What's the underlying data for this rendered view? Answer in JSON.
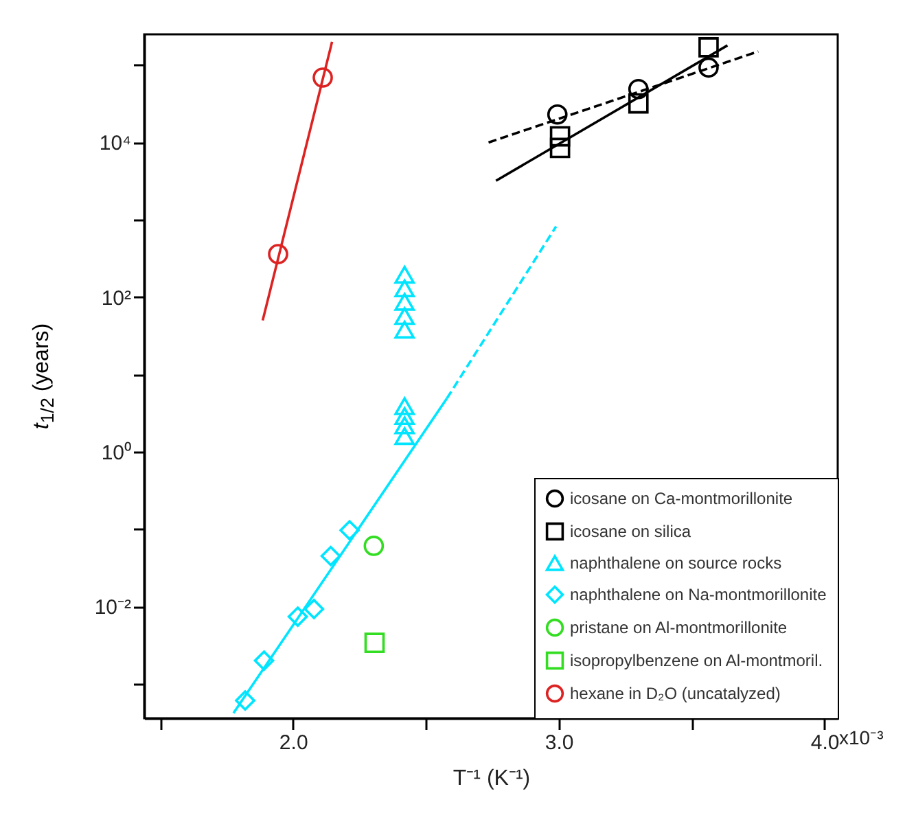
{
  "chart_data": {
    "type": "scatter",
    "xlabel": "T⁻¹ (K⁻¹)",
    "ylabel": "t$_{1/2}$ (years)",
    "log": "y",
    "grid": false,
    "legend": "bottom right",
    "annotations": [
      "x10⁻³"
    ],
    "xlim": [
      1.44,
      4.05
    ],
    "xticks": [
      {
        "value": 1.5,
        "label": null
      },
      {
        "value": 2,
        "label": "2.0"
      },
      {
        "value": 2.5,
        "label": null
      },
      {
        "value": 3,
        "label": "3.0"
      },
      {
        "value": 3.5,
        "label": null
      },
      {
        "value": 4,
        "label": "4.0"
      }
    ],
    "ylim": [
      0.00036,
      250000
    ],
    "yticks": [
      {
        "value": 0.001,
        "label": null
      },
      {
        "value": 0.01,
        "label": "10⁻²"
      },
      {
        "value": 0.1,
        "label": null
      },
      {
        "value": 1,
        "label": "10⁰"
      },
      {
        "value": 10,
        "label": null
      },
      {
        "value": 100,
        "label": "10²"
      },
      {
        "value": 1000,
        "label": null
      },
      {
        "value": 10000,
        "label": "10⁴"
      },
      {
        "value": 100000,
        "label": null
      }
    ],
    "series": [
      {
        "name": "icosane on Ca-montmorillonite",
        "marker": "circle",
        "color": "#000000",
        "x": [
          2.995,
          3.3,
          3.564
        ],
        "values": [
          23000,
          49000,
          93000
        ]
      },
      {
        "name": "icosane on silica",
        "marker": "square",
        "color": "#000000",
        "x": [
          3.005,
          3.005,
          3.3,
          3.564
        ],
        "values": [
          8500,
          12000,
          32000,
          170000
        ]
      },
      {
        "name": "naphthalene on source rocks",
        "marker": "triangle",
        "color": "#00e5ff",
        "x": [
          2.42,
          2.42,
          2.42,
          2.42,
          2.42,
          2.42,
          2.42,
          2.42,
          2.42
        ],
        "values": [
          195,
          130,
          87,
          57,
          38,
          3.9,
          2.9,
          2.2,
          1.6
        ]
      },
      {
        "name": "naphthalene on Na-montmorillonite",
        "marker": "diamond",
        "color": "#00e5ff",
        "x": [
          1.82,
          1.891,
          2.018,
          2.079,
          2.142,
          2.213
        ],
        "values": [
          0.00061,
          0.002,
          0.0074,
          0.0093,
          0.045,
          0.097
        ]
      },
      {
        "name": "pristane on Al-montmorillonite",
        "marker": "circle",
        "color": "#33dd22",
        "x": [
          2.304
        ],
        "values": [
          0.061
        ]
      },
      {
        "name": "isopropylbenzene on Al-montmoril.",
        "marker": "square",
        "color": "#33dd22",
        "x": [
          2.307
        ],
        "values": [
          0.0034
        ]
      },
      {
        "name": "hexane in D₂O (uncatalyzed)",
        "marker": "circle",
        "color": "#dd2222",
        "x": [
          1.944,
          2.112
        ],
        "values": [
          360,
          69000
        ]
      },
      {
        "type": "line",
        "line_style": "solid",
        "color": "#dd2222",
        "x": [
          1.886,
          2.147
        ],
        "values": [
          50,
          200000
        ]
      },
      {
        "type": "line",
        "line_style": "dashed",
        "color": "#000000",
        "x": [
          2.736,
          3.751
        ],
        "values": [
          10000,
          150000
        ]
      },
      {
        "type": "line",
        "line_style": "solid",
        "color": "#000000",
        "x": [
          2.764,
          3.635
        ],
        "values": [
          3200,
          180000
        ]
      },
      {
        "type": "line",
        "line_style": "solid",
        "color": "#00e5ff",
        "x": [
          1.776,
          2.579
        ],
        "values": [
          0.00042,
          4.9
        ]
      },
      {
        "type": "line",
        "line_style": "dashed",
        "color": "#00e5ff",
        "x": [
          2.579,
          2.99
        ],
        "values": [
          4.9,
          820
        ]
      }
    ]
  }
}
